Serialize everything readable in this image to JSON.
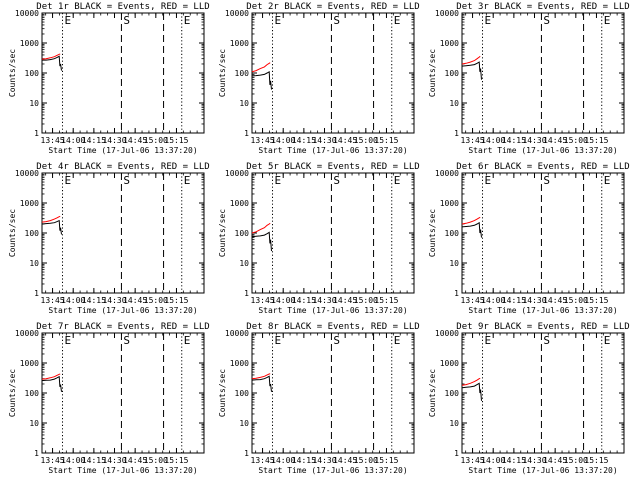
{
  "figure": {
    "shared": {
      "ylabel": "Counts/sec",
      "xlabel": "Start Time (17-Jul-06 13:37:20)",
      "yticks": [
        "1",
        "10",
        "100",
        "1000",
        "10000"
      ],
      "xticks": [
        "13:45",
        "14:00",
        "14:15",
        "14:30",
        "14:45",
        "15:00",
        "15:15"
      ],
      "vline_markers": {
        "E_start": {
          "label": "E",
          "x_min": 14.9,
          "style": "dotted"
        },
        "S": {
          "label": "S",
          "x_min": 57.7,
          "style": "dashed"
        },
        "E_end": {
          "label": "E",
          "x_min": 101.5,
          "style": "dotted"
        },
        "dash_extra": {
          "x_min": 88.3,
          "style": "dashed"
        }
      },
      "colors": {
        "events": "#000000",
        "lld": "#ff0000",
        "axes": "#000000"
      }
    }
  },
  "chart_data": [
    {
      "type": "line",
      "title": "Det 1r BLACK = Events, RED = LLD",
      "yscale": "log",
      "ylim": [
        1,
        10000
      ],
      "x_unit": "minutes since 13:37:20",
      "series": [
        {
          "name": "Events",
          "color": "#000000",
          "x": [
            0,
            3,
            6,
            9,
            11,
            12.5,
            13,
            13.5,
            14.2
          ],
          "y": [
            270,
            270,
            280,
            300,
            330,
            360,
            170,
            200,
            120
          ]
        },
        {
          "name": "LLD",
          "color": "#ff0000",
          "x": [
            0,
            3,
            6,
            9,
            11,
            12.5,
            13.2
          ],
          "y": [
            290,
            300,
            320,
            350,
            390,
            420,
            430
          ]
        }
      ]
    },
    {
      "type": "line",
      "title": "Det 2r BLACK = Events, RED = LLD",
      "yscale": "log",
      "ylim": [
        1,
        10000
      ],
      "x_unit": "minutes since 13:37:20",
      "series": [
        {
          "name": "Events",
          "color": "#000000",
          "x": [
            0,
            3,
            6,
            9,
            11,
            12.5,
            13,
            13.5,
            14.2
          ],
          "y": [
            80,
            82,
            85,
            90,
            100,
            110,
            40,
            55,
            28
          ]
        },
        {
          "name": "LLD",
          "color": "#ff0000",
          "x": [
            0,
            3,
            6,
            9,
            11,
            12.5,
            13.2
          ],
          "y": [
            110,
            120,
            140,
            160,
            190,
            210,
            220
          ]
        }
      ]
    },
    {
      "type": "line",
      "title": "Det 3r BLACK = Events, RED = LLD",
      "yscale": "log",
      "ylim": [
        1,
        10000
      ],
      "x_unit": "minutes since 13:37:20",
      "series": [
        {
          "name": "Events",
          "color": "#000000",
          "x": [
            0,
            3,
            6,
            9,
            11,
            12.5,
            13,
            13.5,
            14.2
          ],
          "y": [
            170,
            175,
            180,
            190,
            210,
            230,
            110,
            140,
            60
          ]
        },
        {
          "name": "LLD",
          "color": "#ff0000",
          "x": [
            0,
            3,
            6,
            9,
            11,
            12.5,
            13.2
          ],
          "y": [
            200,
            210,
            230,
            260,
            300,
            340,
            360
          ]
        }
      ]
    },
    {
      "type": "line",
      "title": "Det 4r BLACK = Events, RED = LLD",
      "yscale": "log",
      "ylim": [
        1,
        10000
      ],
      "x_unit": "minutes since 13:37:20",
      "series": [
        {
          "name": "Events",
          "color": "#000000",
          "x": [
            0,
            3,
            6,
            9,
            11,
            12.5,
            13,
            13.5,
            14.2
          ],
          "y": [
            200,
            205,
            210,
            220,
            240,
            260,
            120,
            150,
            90
          ]
        },
        {
          "name": "LLD",
          "color": "#ff0000",
          "x": [
            0,
            3,
            6,
            9,
            11,
            12.5,
            13.2
          ],
          "y": [
            230,
            240,
            260,
            290,
            320,
            350,
            360
          ]
        }
      ]
    },
    {
      "type": "line",
      "title": "Det 5r BLACK = Events, RED = LLD",
      "yscale": "log",
      "ylim": [
        1,
        10000
      ],
      "x_unit": "minutes since 13:37:20",
      "series": [
        {
          "name": "Events",
          "color": "#000000",
          "x": [
            0,
            3,
            6,
            9,
            11,
            12.5,
            13,
            13.5,
            14.2
          ],
          "y": [
            75,
            78,
            80,
            85,
            95,
            105,
            45,
            60,
            25
          ]
        },
        {
          "name": "LLD",
          "color": "#ff0000",
          "x": [
            0,
            3,
            6,
            9,
            11,
            12.5,
            13.2
          ],
          "y": [
            100,
            110,
            130,
            150,
            180,
            200,
            210
          ]
        }
      ]
    },
    {
      "type": "line",
      "title": "Det 6r BLACK = Events, RED = LLD",
      "yscale": "log",
      "ylim": [
        1,
        10000
      ],
      "x_unit": "minutes since 13:37:20",
      "series": [
        {
          "name": "Events",
          "color": "#000000",
          "x": [
            0,
            3,
            6,
            9,
            11,
            12.5,
            13,
            13.5,
            14.2
          ],
          "y": [
            160,
            165,
            170,
            180,
            200,
            220,
            100,
            130,
            70
          ]
        },
        {
          "name": "LLD",
          "color": "#ff0000",
          "x": [
            0,
            3,
            6,
            9,
            11,
            12.5,
            13.2
          ],
          "y": [
            200,
            210,
            230,
            260,
            290,
            320,
            330
          ]
        }
      ]
    },
    {
      "type": "line",
      "title": "Det 7r BLACK = Events, RED = LLD",
      "yscale": "log",
      "ylim": [
        1,
        10000
      ],
      "x_unit": "minutes since 13:37:20",
      "series": [
        {
          "name": "Events",
          "color": "#000000",
          "x": [
            0,
            3,
            6,
            9,
            11,
            12.5,
            13,
            13.5,
            14.2
          ],
          "y": [
            260,
            265,
            270,
            290,
            320,
            350,
            160,
            190,
            110
          ]
        },
        {
          "name": "LLD",
          "color": "#ff0000",
          "x": [
            0,
            3,
            6,
            9,
            11,
            12.5,
            13.2
          ],
          "y": [
            290,
            300,
            320,
            350,
            390,
            420,
            430
          ]
        }
      ]
    },
    {
      "type": "line",
      "title": "Det 8r BLACK = Events, RED = LLD",
      "yscale": "log",
      "ylim": [
        1,
        10000
      ],
      "x_unit": "minutes since 13:37:20",
      "series": [
        {
          "name": "Events",
          "color": "#000000",
          "x": [
            0,
            3,
            6,
            9,
            11,
            12.5,
            13,
            13.5,
            14.2
          ],
          "y": [
            270,
            275,
            280,
            300,
            330,
            360,
            170,
            200,
            110
          ]
        },
        {
          "name": "LLD",
          "color": "#ff0000",
          "x": [
            0,
            3,
            6,
            9,
            11,
            12.5,
            13.2
          ],
          "y": [
            300,
            310,
            330,
            360,
            400,
            430,
            440
          ]
        }
      ]
    },
    {
      "type": "line",
      "title": "Det 9r BLACK = Events, RED = LLD",
      "yscale": "log",
      "ylim": [
        1,
        10000
      ],
      "x_unit": "minutes since 13:37:20",
      "series": [
        {
          "name": "Events",
          "color": "#000000",
          "x": [
            0,
            3,
            6,
            9,
            11,
            12.5,
            13,
            13.5,
            14.2
          ],
          "y": [
            150,
            155,
            160,
            170,
            190,
            210,
            100,
            130,
            55
          ]
        },
        {
          "name": "LLD",
          "color": "#ff0000",
          "x": [
            0,
            3,
            6,
            9,
            11,
            12.5,
            13.2
          ],
          "y": [
            180,
            190,
            210,
            240,
            270,
            300,
            310
          ]
        }
      ]
    }
  ]
}
